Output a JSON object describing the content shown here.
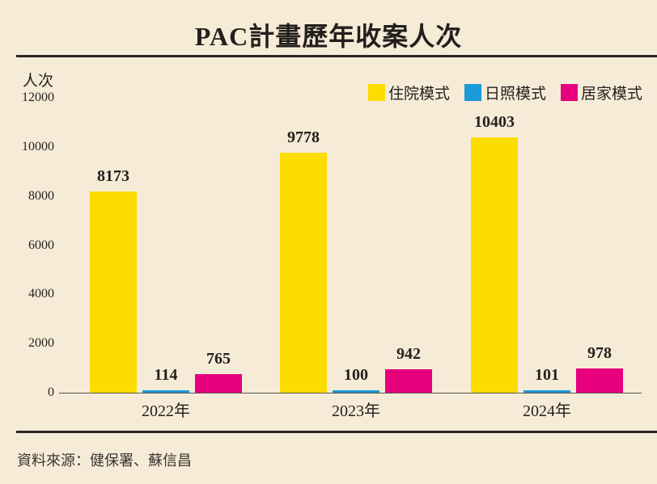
{
  "header": {
    "title": "PAC計畫歷年收案人次"
  },
  "footer": {
    "source": "資料來源：健保署、蘇信昌"
  },
  "colors": {
    "inpatient": "#fddc00",
    "daycare": "#1a9ad6",
    "homecare": "#e6007e",
    "background": "#f6ebd7"
  },
  "legend": [
    {
      "label": "住院模式",
      "color": "#fddc00"
    },
    {
      "label": "日照模式",
      "color": "#1a9ad6"
    },
    {
      "label": "居家模式",
      "color": "#e6007e"
    }
  ],
  "chart_data": {
    "type": "bar",
    "title": "PAC計畫歷年收案人次",
    "xlabel": "",
    "ylabel": "人次",
    "categories": [
      "2022年",
      "2023年",
      "2024年"
    ],
    "series": [
      {
        "name": "住院模式",
        "color": "#fddc00",
        "values": [
          8173,
          9778,
          10403
        ]
      },
      {
        "name": "日照模式",
        "color": "#1a9ad6",
        "values": [
          114,
          100,
          101
        ]
      },
      {
        "name": "居家模式",
        "color": "#e6007e",
        "values": [
          765,
          942,
          978
        ]
      }
    ],
    "ylim": [
      0,
      12000
    ],
    "yticks": [
      "0",
      "2000",
      "4000",
      "6000",
      "8000",
      "10000",
      "12000"
    ],
    "grid": false,
    "legend_position": "top-right",
    "data_labels": true,
    "source": "資料來源：健保署、蘇信昌"
  }
}
